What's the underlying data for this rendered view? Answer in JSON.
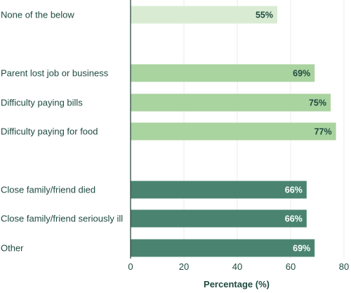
{
  "chart_data": {
    "type": "bar",
    "orientation": "horizontal",
    "xlabel": "Percentage (%)",
    "xlim": [
      0,
      80
    ],
    "xticks": [
      "0",
      "20",
      "40",
      "60",
      "80"
    ],
    "grid": true,
    "categories": [
      "None of the below",
      "Parent lost job or business",
      "Difficulty paying bills",
      "Difficulty paying for food",
      "Close family/friend died",
      "Close family/friend seriously ill",
      "Other"
    ],
    "values": [
      55,
      69,
      75,
      77,
      66,
      66,
      69
    ],
    "value_labels": [
      "55%",
      "69%",
      "75%",
      "77%",
      "66%",
      "66%",
      "69%"
    ],
    "groups": [
      0,
      1,
      1,
      1,
      2,
      2,
      2
    ],
    "colors": {
      "group_0": "#d9ecd3",
      "group_1": "#a9d39f",
      "group_2": "#4a8470",
      "label_on_light": "#1f4a40",
      "label_on_dark": "#ffffff"
    }
  }
}
